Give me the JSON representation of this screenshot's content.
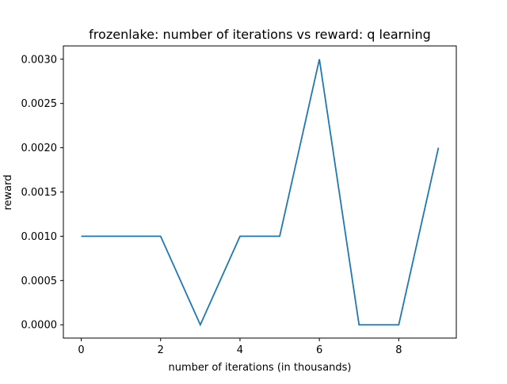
{
  "chart_data": {
    "type": "line",
    "title": "frozenlake: number of iterations vs reward: q learning",
    "xlabel": "number of iterations (in thousands)",
    "ylabel": "reward",
    "xlim": [
      -0.45,
      9.45
    ],
    "ylim": [
      -0.00015,
      0.00315
    ],
    "xticks": [
      0,
      2,
      4,
      6,
      8
    ],
    "xtick_labels": [
      "0",
      "2",
      "4",
      "6",
      "8"
    ],
    "yticks": [
      0,
      0.0005,
      0.001,
      0.0015,
      0.002,
      0.0025,
      0.003
    ],
    "ytick_labels": [
      "0.0000",
      "0.0005",
      "0.0010",
      "0.0015",
      "0.0020",
      "0.0025",
      "0.0030"
    ],
    "grid": false,
    "legend": "none",
    "series": [
      {
        "color": "#1f77b4",
        "x": [
          0,
          1,
          2,
          3,
          4,
          5,
          6,
          7,
          8,
          9
        ],
        "y": [
          0.001,
          0.001,
          0.001,
          0.0,
          0.001,
          0.001,
          0.003,
          0.0,
          0.0,
          0.002
        ]
      }
    ]
  }
}
